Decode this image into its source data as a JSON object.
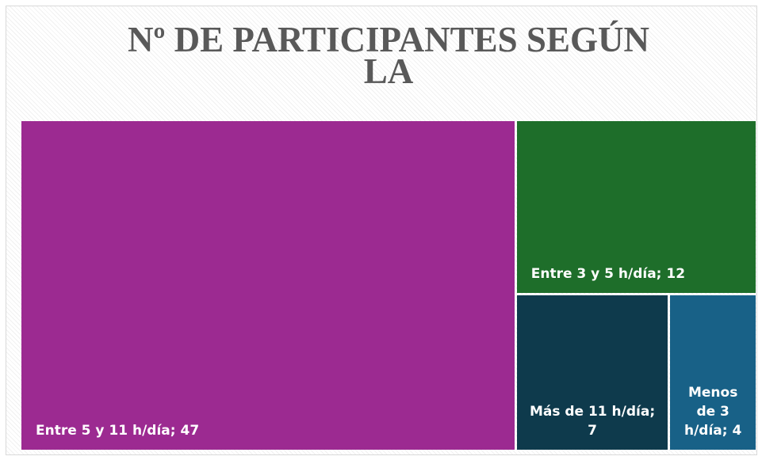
{
  "chart_data": {
    "type": "treemap",
    "title": "Nº DE PARTICIPANTES SEGÚN LA",
    "categories": [
      "Entre 5 y 11 h/día",
      "Entre 3 y 5 h/día",
      "Más de 11 h/día",
      "Menos de 3 h/día"
    ],
    "values": [
      47,
      12,
      7,
      4
    ],
    "value_labels": [
      "Entre 5 y 11 h/día; 47",
      "Entre 3 y 5 h/día; 12",
      "Más de 11 h/día; 7",
      "Menos de 3 h/día; 4"
    ],
    "colors": [
      "#9c2a91",
      "#1e6e2a",
      "#0e3a4c",
      "#186187"
    ]
  }
}
